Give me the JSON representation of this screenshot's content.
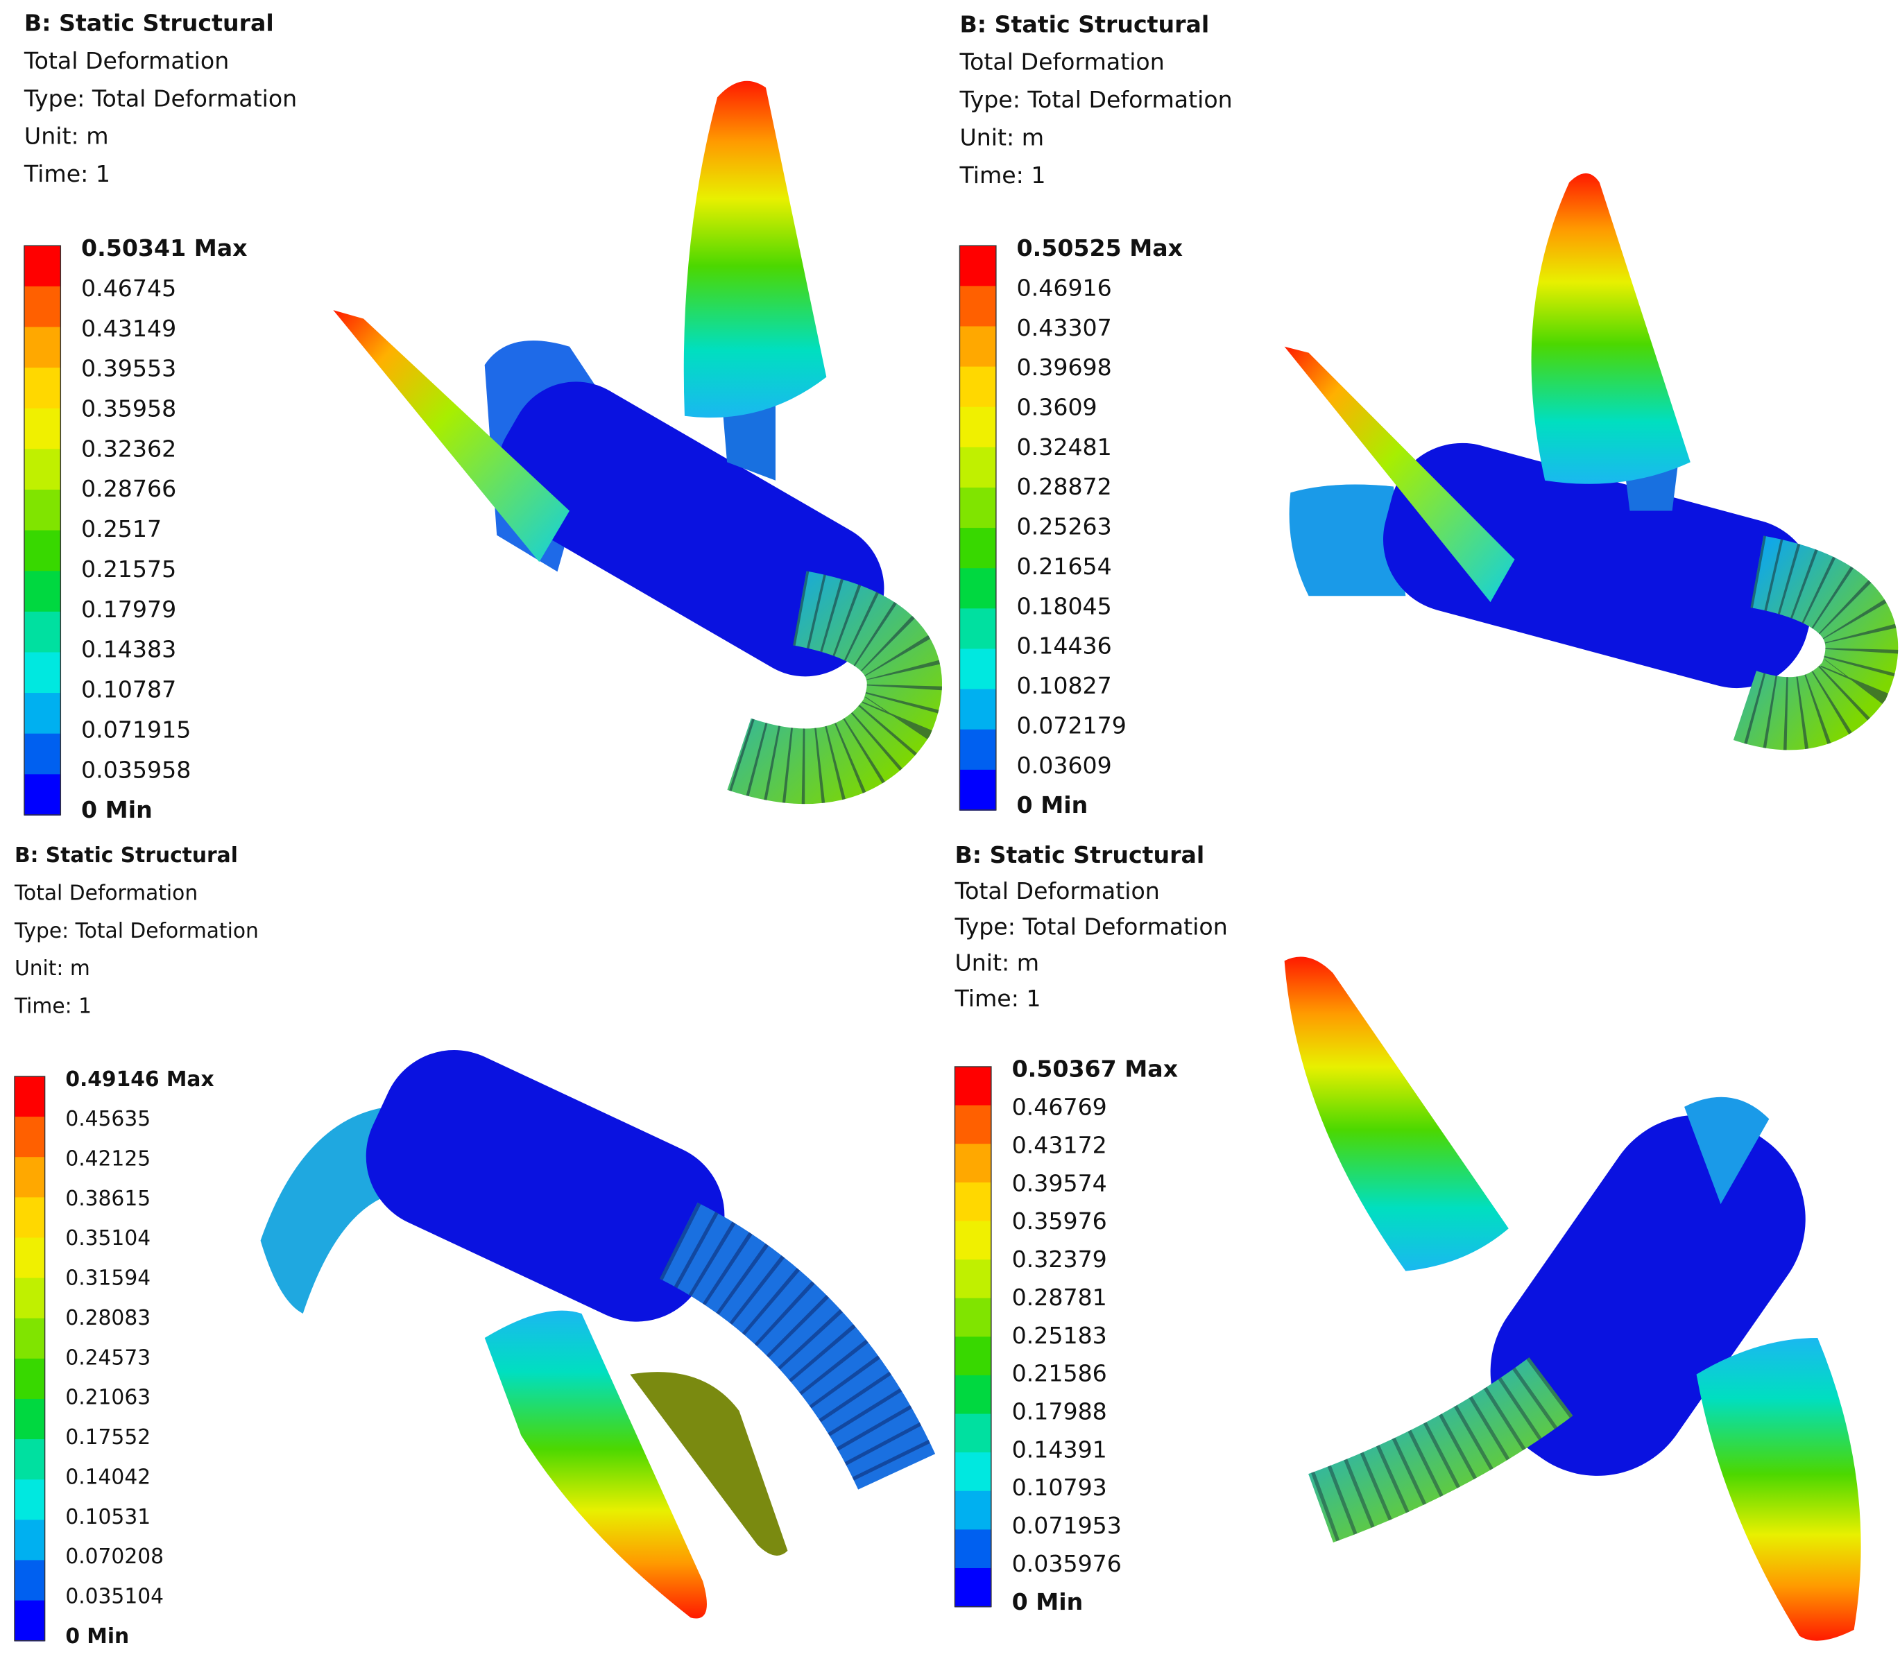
{
  "panels": [
    {
      "header": [
        "B: Static Structural",
        "Total Deformation",
        "Type: Total Deformation",
        "Unit: m",
        "Time: 1"
      ],
      "legend": [
        "0.50341 Max",
        "0.46745",
        "0.43149",
        "0.39553",
        "0.35958",
        "0.32362",
        "0.28766",
        "0.2517",
        "0.21575",
        "0.17979",
        "0.14383",
        "0.10787",
        "0.071915",
        "0.035958",
        "0 Min"
      ]
    },
    {
      "header": [
        "B: Static Structural",
        "Total Deformation",
        "Type: Total Deformation",
        "Unit: m",
        "Time: 1"
      ],
      "legend": [
        "0.50525 Max",
        "0.46916",
        "0.43307",
        "0.39698",
        "0.3609",
        "0.32481",
        "0.28872",
        "0.25263",
        "0.21654",
        "0.18045",
        "0.14436",
        "0.10827",
        "0.072179",
        "0.03609",
        "0 Min"
      ]
    },
    {
      "header": [
        "B: Static Structural",
        "Total Deformation",
        "Type: Total Deformation",
        "Unit: m",
        "Time: 1"
      ],
      "legend": [
        "0.49146 Max",
        "0.45635",
        "0.42125",
        "0.38615",
        "0.35104",
        "0.31594",
        "0.28083",
        "0.24573",
        "0.21063",
        "0.17552",
        "0.14042",
        "0.10531",
        "0.070208",
        "0.035104",
        "0 Min"
      ]
    },
    {
      "header": [
        "B: Static Structural",
        "Total Deformation",
        "Type: Total Deformation",
        "Unit: m",
        "Time: 1"
      ],
      "legend": [
        "0.50367 Max",
        "0.46769",
        "0.43172",
        "0.39574",
        "0.35976",
        "0.32379",
        "0.28781",
        "0.25183",
        "0.21586",
        "0.17988",
        "0.14391",
        "0.10793",
        "0.071953",
        "0.035976",
        "0 Min"
      ]
    }
  ]
}
